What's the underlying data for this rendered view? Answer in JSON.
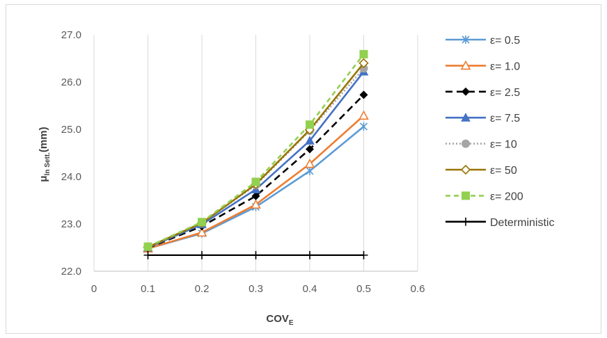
{
  "chart_data": {
    "type": "line",
    "xlabel_main": "COV",
    "xlabel_sub": "E",
    "ylabel_main": "μ",
    "ylabel_sub": "ln Sett.",
    "ylabel_unit": "(mm)",
    "xlim": [
      0,
      0.6
    ],
    "ylim": [
      22.0,
      27.0
    ],
    "x_ticks": [
      "0",
      "0.1",
      "0.2",
      "0.3",
      "0.4",
      "0.5",
      "0.6"
    ],
    "y_ticks": [
      "22.0",
      "23.0",
      "24.0",
      "25.0",
      "26.0",
      "27.0"
    ],
    "grid": "vertical",
    "legend_position": "right",
    "x": [
      0.1,
      0.2,
      0.3,
      0.4,
      0.5
    ],
    "series": [
      {
        "name": "ε= 0.5",
        "values": [
          22.48,
          22.8,
          23.36,
          24.12,
          25.06
        ],
        "color": "#5b9bd5",
        "dash": "",
        "marker": "star"
      },
      {
        "name": "ε= 1.0",
        "values": [
          22.48,
          22.82,
          23.41,
          24.27,
          25.29
        ],
        "color": "#ed7d31",
        "dash": "",
        "marker": "triangle-open"
      },
      {
        "name": "ε= 2.5",
        "values": [
          22.49,
          22.95,
          23.59,
          24.58,
          25.73
        ],
        "color": "#000000",
        "dash": "10,6",
        "marker": "diamond"
      },
      {
        "name": "ε= 7.5",
        "values": [
          22.5,
          22.99,
          23.73,
          24.76,
          26.22
        ],
        "color": "#4472c4",
        "dash": "",
        "marker": "triangle"
      },
      {
        "name": "ε= 10",
        "values": [
          22.51,
          23.02,
          23.82,
          24.97,
          26.29
        ],
        "color": "#a5a5a5",
        "dash": "2,3",
        "marker": "circle"
      },
      {
        "name": "ε= 50",
        "values": [
          22.51,
          23.02,
          23.84,
          24.99,
          26.4
        ],
        "color": "#997300",
        "dash": "",
        "marker": "diamond-open"
      },
      {
        "name": "ε= 200",
        "values": [
          22.52,
          23.04,
          23.89,
          25.1,
          26.59
        ],
        "color": "#92d050",
        "dash": "7,5",
        "marker": "square"
      },
      {
        "name": "Deterministic",
        "values": [
          22.34,
          22.34,
          22.34,
          22.34,
          22.34
        ],
        "color": "#000000",
        "dash": "",
        "marker": "plus"
      }
    ]
  }
}
